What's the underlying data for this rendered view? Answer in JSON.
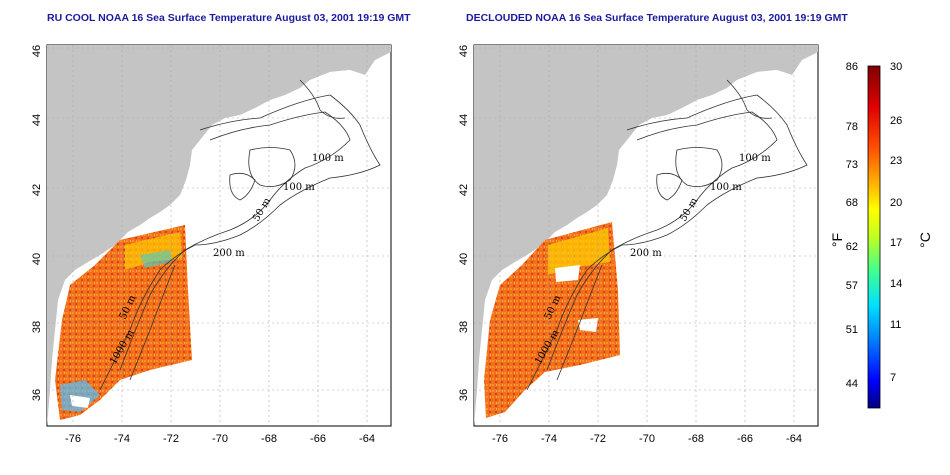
{
  "panels": [
    {
      "id": "left",
      "title": "RU COOL NOAA 16 Sea Surface Temperature August 03, 2001 19:19 GMT"
    },
    {
      "id": "right",
      "title": "DECLOUDED NOAA 16 Sea Surface Temperature August 03, 2001 19:19 GMT"
    }
  ],
  "axes": {
    "lon_ticks": [
      "-76",
      "-74",
      "-72",
      "-70",
      "-68",
      "-66",
      "-64"
    ],
    "lat_ticks": [
      "36",
      "38",
      "40",
      "42",
      "44",
      "46"
    ]
  },
  "contour_labels": [
    "100 m",
    "100 m",
    "50 m",
    "200 m",
    "50 m",
    "1000 m"
  ],
  "colorbar": {
    "fahrenheit_ticks": [
      "86",
      "78",
      "73",
      "68",
      "62",
      "57",
      "51",
      "44"
    ],
    "celsius_ticks": [
      "30",
      "26",
      "23",
      "20",
      "17",
      "14",
      "11",
      "7"
    ],
    "fahrenheit_label": "°F",
    "celsius_label": "°C",
    "colors": [
      "#000080",
      "#0000ff",
      "#0080ff",
      "#00e0ff",
      "#40ff90",
      "#c0ff20",
      "#ffff00",
      "#ffb000",
      "#ff5000",
      "#e00000",
      "#800000"
    ]
  },
  "colors": {
    "land": "#c4c4c4",
    "title": "#1a1aa0",
    "ocean": "#ffffff"
  }
}
